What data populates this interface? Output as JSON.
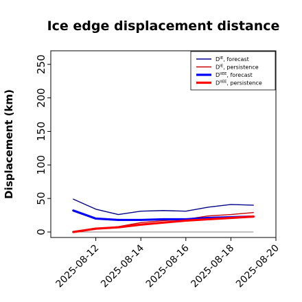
{
  "chart_data": {
    "type": "line",
    "title": "Ice edge displacement distance",
    "ylabel": "Displacement (km)",
    "xlabel": "",
    "ylim": [
      0,
      260
    ],
    "xlim": [
      "2025-08-10",
      "2025-08-20"
    ],
    "yticks": [
      0,
      50,
      100,
      150,
      200,
      250
    ],
    "xtick_labels": [
      "2025-08-12",
      "2025-08-14",
      "2025-08-16",
      "2025-08-18",
      "2025-08-20"
    ],
    "highlight_tick": "2025-08-12",
    "highlight_color": "#2e8b2e",
    "grid": false,
    "legend_position": "top-right",
    "x": [
      "2025-08-11",
      "2025-08-12",
      "2025-08-13",
      "2025-08-14",
      "2025-08-15",
      "2025-08-16",
      "2025-08-17",
      "2025-08-18",
      "2025-08-19"
    ],
    "series": [
      {
        "name": "D^IE, forecast",
        "base": "D",
        "sup": "IE",
        "tail": ", forecast",
        "color": "#00008b",
        "weight": "thin",
        "values": [
          49,
          34,
          26,
          31,
          32,
          31,
          37,
          41,
          40
        ]
      },
      {
        "name": "D^IE, persistence",
        "base": "D",
        "sup": "IE",
        "tail": ", persistence",
        "color": "#cc0000",
        "weight": "thin",
        "values": [
          0,
          5,
          8,
          14,
          17,
          19,
          24,
          26,
          29
        ]
      },
      {
        "name": "D^IIEE, forecast",
        "base": "D",
        "sup": "IIEE",
        "tail": ", forecast",
        "color": "#0000ff",
        "weight": "thick",
        "values": [
          32,
          20,
          18,
          18,
          19,
          19,
          21,
          22,
          23
        ]
      },
      {
        "name": "D^IIEE, persistence",
        "base": "D",
        "sup": "IIEE",
        "tail": ", persistence",
        "color": "#ff0000",
        "weight": "thick",
        "values": [
          0,
          5,
          7,
          11,
          14,
          17,
          19,
          21,
          23
        ]
      }
    ],
    "zero_line": {
      "color": "#808080",
      "from": "2025-08-11",
      "to": "2025-08-19",
      "value": 0
    }
  }
}
